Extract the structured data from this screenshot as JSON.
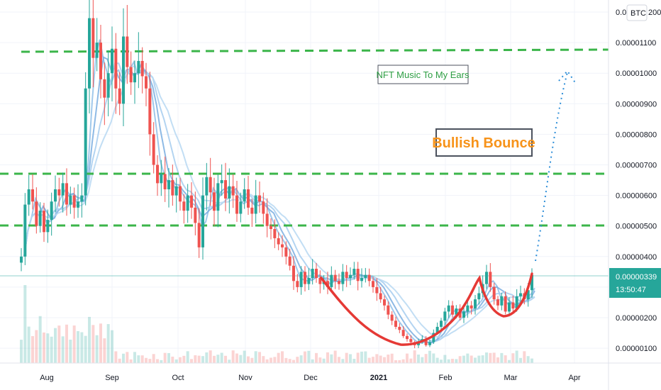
{
  "chart_data": {
    "type": "candlestick",
    "currency_badge": "BTC",
    "y_ticks": [
      "0.00001200",
      "0.00001100",
      "0.00001000",
      "0.00000900",
      "0.00000800",
      "0.00000700",
      "0.00000600",
      "0.00000500",
      "0.00000400",
      "0.00000300",
      "0.00000200",
      "0.00000100"
    ],
    "y_tick_values": [
      1.2e-05,
      1.1e-05,
      1e-05,
      9e-06,
      8e-06,
      7e-06,
      6e-06,
      5e-06,
      4e-06,
      3e-06,
      2e-06,
      1e-06
    ],
    "top_tick_partial": "0.0",
    "top_tick_tail": "200",
    "x_ticks": [
      {
        "label": "Aug",
        "bold": false
      },
      {
        "label": "Sep",
        "bold": false
      },
      {
        "label": "Oct",
        "bold": false
      },
      {
        "label": "Nov",
        "bold": false
      },
      {
        "label": "Dec",
        "bold": false
      },
      {
        "label": "2021",
        "bold": true
      },
      {
        "label": "Feb",
        "bold": false
      },
      {
        "label": "Mar",
        "bold": false
      },
      {
        "label": "Apr",
        "bold": false
      }
    ],
    "current_price": "0.00000339",
    "countdown": "13:50:47",
    "resistance_levels": [
      1.07e-05,
      6.7e-06,
      5.05e-06
    ],
    "annotations": {
      "nft_label": "NFT Music To My Ears",
      "bounce_label": "Bullish Bounce"
    },
    "close_series": [
      4e-06,
      5.7e-06,
      6.2e-06,
      5.8e-06,
      5e-06,
      5.5e-06,
      4.8e-06,
      5.2e-06,
      5.8e-06,
      6.2e-06,
      6e-06,
      6.4e-06,
      5.7e-06,
      6e-06,
      5.6e-06,
      5.8e-06,
      6e-06,
      9.5e-06,
      1.18e-05,
      1.05e-05,
      1.1e-05,
      9.8e-06,
      9.2e-06,
      1e-05,
      1.08e-05,
      9.5e-06,
      9e-06,
      1.12e-05,
      1.02e-05,
      9.7e-06,
      1e-05,
      1.04e-05,
      9.9e-06,
      9.5e-06,
      8e-06,
      7e-06,
      6.4e-06,
      6.7e-06,
      6.2e-06,
      6.5e-06,
      6e-06,
      6.3e-06,
      5.8e-06,
      5.5e-06,
      6e-06,
      5.6e-06,
      5.1e-06,
      4.3e-06,
      6e-06,
      6.6e-06,
      6.1e-06,
      5.5e-06,
      6.4e-06,
      6.5e-06,
      5.9e-06,
      6.3e-06,
      6e-06,
      5.4e-06,
      5.8e-06,
      6.2e-06,
      5.6e-06,
      5.4e-06,
      6e-06,
      5.8e-06,
      5.4e-06,
      5e-06,
      4.9e-06,
      4.6e-06,
      4.4e-06,
      4.3e-06,
      4e-06,
      3.7e-06,
      3.2e-06,
      3e-06,
      3.5e-06,
      3.1e-06,
      3.3e-06,
      3.6e-06,
      3.3e-06,
      3.1e-06,
      3.2e-06,
      3e-06,
      3.4e-06,
      3.2e-06,
      3.1e-06,
      3.5e-06,
      3.3e-06,
      3.4e-06,
      3.6e-06,
      3.2e-06,
      3.3e-06,
      3.4e-06,
      3.2e-06,
      3e-06,
      2.8e-06,
      2.6e-06,
      2.4e-06,
      2.1e-06,
      1.9e-06,
      1.7e-06,
      1.6e-06,
      1.4e-06,
      1.3e-06,
      1.2e-06,
      1.1e-06,
      1.2e-06,
      1.3e-06,
      1.1e-06,
      1.2e-06,
      1.5e-06,
      1.7e-06,
      1.9e-06,
      2.2e-06,
      2.4e-06,
      2.1e-06,
      2.3e-06,
      2e-06,
      2.2e-06,
      2.4e-06,
      2.3e-06,
      2.6e-06,
      2.8e-06,
      3.1e-06,
      3.5e-06,
      3e-06,
      2.6e-06,
      2.4e-06,
      2.7e-06,
      2.2e-06,
      2.5e-06,
      2.3e-06,
      2.7e-06,
      2.8e-06,
      2.6e-06,
      2.9e-06,
      3.4e-06
    ]
  }
}
